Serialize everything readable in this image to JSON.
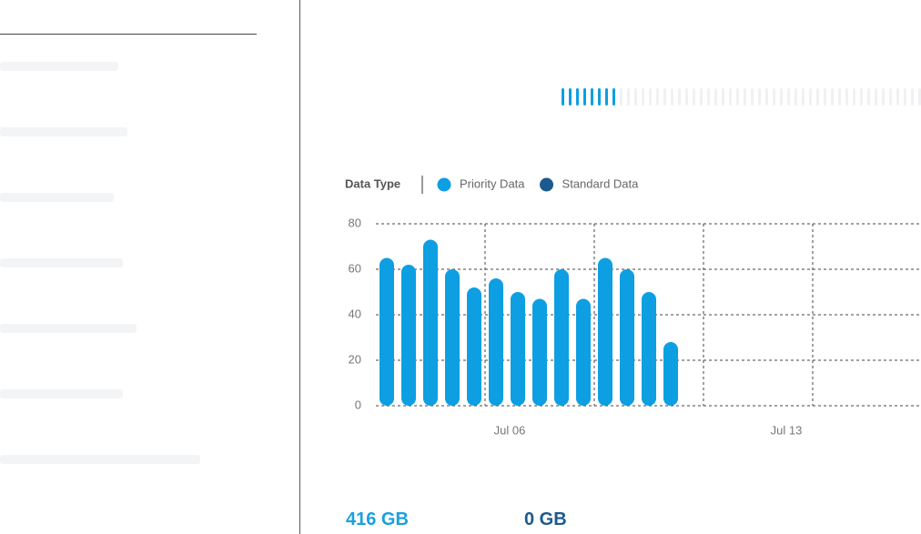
{
  "chart_data": {
    "type": "bar",
    "legend_title": "Data Type",
    "series": [
      {
        "name": "Priority Data",
        "color": "#0d9fe2",
        "values": [
          65,
          62,
          73,
          60,
          52,
          56,
          50,
          47,
          60,
          47,
          65,
          60,
          50,
          28
        ]
      },
      {
        "name": "Standard Data",
        "color": "#1b5a8e",
        "values": [
          0,
          0,
          0,
          0,
          0,
          0,
          0,
          0,
          0,
          0,
          0,
          0,
          0,
          0
        ]
      }
    ],
    "categories": [
      null,
      null,
      null,
      null,
      null,
      null,
      null,
      null,
      null,
      null,
      null,
      null,
      null,
      null
    ],
    "x_labels": [
      "Jul 06",
      "Jul 13"
    ],
    "ylim": [
      0,
      80
    ],
    "yticks": [
      0,
      20,
      40,
      60,
      80
    ],
    "grid": true
  },
  "summary": [
    {
      "value": "416 GB",
      "color": "#1aa0e0"
    },
    {
      "value": "0 GB",
      "color": "#1b5a8e"
    }
  ]
}
